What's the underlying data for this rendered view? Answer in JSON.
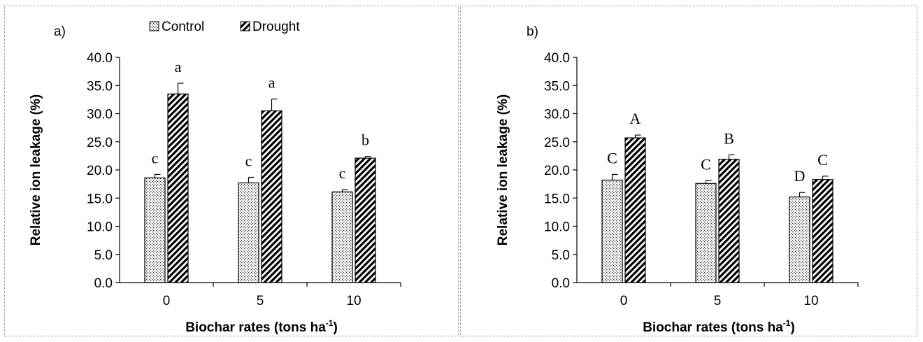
{
  "chart_data": [
    {
      "panel_label": "a)",
      "type": "bar",
      "categories": [
        "0",
        "5",
        "10"
      ],
      "series": [
        {
          "name": "Control",
          "values": [
            18.6,
            17.7,
            16.1
          ],
          "errors": [
            0.6,
            1.0,
            0.4
          ],
          "letters": [
            "c",
            "c",
            "c"
          ],
          "pattern": "dots"
        },
        {
          "name": "Drought",
          "values": [
            33.5,
            30.5,
            22.1
          ],
          "errors": [
            1.9,
            2.1,
            0.3
          ],
          "letters": [
            "a",
            "a",
            "b"
          ],
          "pattern": "hatch"
        }
      ],
      "ylabel": "Relative ion leakage (%)",
      "xlabel_main": "Biochar rates (tons ha",
      "xlabel_sup": "-1",
      "xlabel_end": ")",
      "ylim": [
        0,
        40
      ],
      "yticks": [
        "0.0",
        "5.0",
        "10.0",
        "15.0",
        "20.0",
        "25.0",
        "30.0",
        "35.0",
        "40.0"
      ],
      "legend": "top",
      "grid": false
    },
    {
      "panel_label": "b)",
      "type": "bar",
      "categories": [
        "0",
        "5",
        "10"
      ],
      "series": [
        {
          "name": "Control",
          "values": [
            18.2,
            17.6,
            15.2
          ],
          "errors": [
            1.0,
            0.5,
            0.8
          ],
          "letters": [
            "C",
            "C",
            "D"
          ],
          "pattern": "dots"
        },
        {
          "name": "Drought",
          "values": [
            25.7,
            21.9,
            18.3
          ],
          "errors": [
            0.5,
            0.8,
            0.6
          ],
          "letters": [
            "A",
            "B",
            "C"
          ],
          "pattern": "hatch"
        }
      ],
      "ylabel": "Relative ion leakage (%)",
      "xlabel_main": "Biochar rates (tons ha",
      "xlabel_sup": "-1",
      "xlabel_end": ")",
      "ylim": [
        0,
        40
      ],
      "yticks": [
        "0.0",
        "5.0",
        "10.0",
        "15.0",
        "20.0",
        "25.0",
        "30.0",
        "35.0",
        "40.0"
      ],
      "legend": "none",
      "grid": false
    }
  ]
}
